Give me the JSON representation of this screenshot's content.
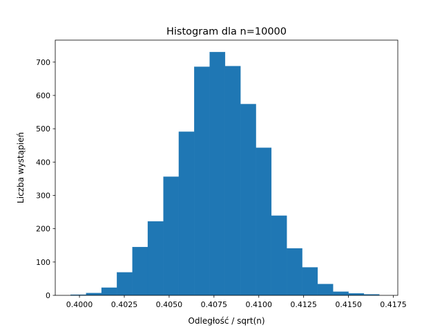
{
  "chart_data": {
    "type": "bar",
    "title": "Histogram dla n=10000",
    "xlabel": "Odległość / sqrt(n)",
    "ylabel": "Liczba wystąpień",
    "xlim": [
      0.39865,
      0.41775
    ],
    "ylim": [
      0,
      766
    ],
    "xticks": [
      0.4,
      0.4025,
      0.405,
      0.4075,
      0.41,
      0.4125,
      0.415,
      0.4175
    ],
    "xtick_labels": [
      "0.4000",
      "0.4025",
      "0.4050",
      "0.4075",
      "0.4100",
      "0.4125",
      "0.4150",
      "0.4175"
    ],
    "yticks": [
      0,
      100,
      200,
      300,
      400,
      500,
      600,
      700
    ],
    "ytick_labels": [
      "0",
      "100",
      "200",
      "300",
      "400",
      "500",
      "600",
      "700"
    ],
    "grid": false,
    "bar_color": "#1f77b4",
    "bins": [
      [
        0.39951,
        0.40037
      ],
      [
        0.40037,
        0.40123
      ],
      [
        0.40123,
        0.40209
      ],
      [
        0.40209,
        0.40295
      ],
      [
        0.40295,
        0.40381
      ],
      [
        0.40381,
        0.40468
      ],
      [
        0.40468,
        0.40554
      ],
      [
        0.40554,
        0.4064
      ],
      [
        0.4064,
        0.40726
      ],
      [
        0.40726,
        0.40812
      ],
      [
        0.40812,
        0.40898
      ],
      [
        0.40898,
        0.40984
      ],
      [
        0.40984,
        0.4107
      ],
      [
        0.4107,
        0.41156
      ],
      [
        0.41156,
        0.41242
      ],
      [
        0.41242,
        0.41328
      ],
      [
        0.41328,
        0.41414
      ],
      [
        0.41414,
        0.415
      ],
      [
        0.415,
        0.41586
      ],
      [
        0.41586,
        0.41672
      ]
    ],
    "values": [
      2,
      7,
      23,
      69,
      145,
      222,
      356,
      491,
      686,
      730,
      688,
      574,
      443,
      239,
      141,
      84,
      34,
      11,
      6,
      3
    ]
  }
}
